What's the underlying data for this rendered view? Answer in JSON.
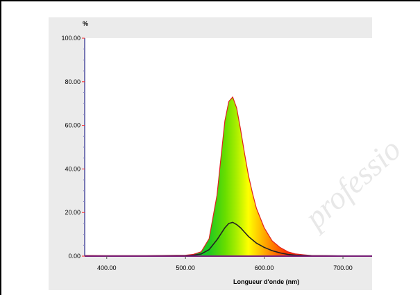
{
  "chart_data": {
    "type": "line",
    "title": "",
    "xlabel": "Longueur d'onde (nm)",
    "ylabel": "%",
    "xlim": [
      372,
      737
    ],
    "ylim": [
      0,
      100
    ],
    "xticks": [
      "400.00",
      "500.00",
      "600.00",
      "700.00"
    ],
    "yticks": [
      "0.00",
      "20.00",
      "40.00",
      "60.00",
      "80.00",
      "100.00"
    ],
    "grid": false,
    "series": [
      {
        "style": "filled spectrum",
        "line_color": "#e02020",
        "x": [
          372,
          400,
          450,
          500,
          510,
          520,
          530,
          540,
          545,
          550,
          555,
          560,
          565,
          570,
          575,
          580,
          585,
          590,
          600,
          610,
          620,
          630,
          640,
          650,
          660,
          680,
          700,
          737
        ],
        "y": [
          0.3,
          0.2,
          0.2,
          0.4,
          0.8,
          2.0,
          8,
          28,
          45,
          62,
          71,
          73,
          68,
          58,
          47,
          37,
          29,
          22,
          13,
          7,
          4,
          2,
          1,
          0.6,
          0.3,
          0.2,
          0.1,
          0.1
        ]
      },
      {
        "style": "line",
        "line_color": "#222222",
        "x": [
          372,
          400,
          450,
          500,
          510,
          520,
          530,
          540,
          550,
          555,
          560,
          565,
          570,
          575,
          580,
          590,
          600,
          610,
          620,
          630,
          640,
          660,
          700,
          737
        ],
        "y": [
          0.1,
          0.1,
          0.1,
          0.2,
          0.4,
          1,
          3,
          7.5,
          13,
          15,
          15.5,
          14.5,
          13,
          11,
          9,
          6,
          4,
          2.5,
          1.5,
          0.8,
          0.4,
          0.2,
          0.1,
          0.1
        ]
      }
    ]
  },
  "watermark": "professio"
}
